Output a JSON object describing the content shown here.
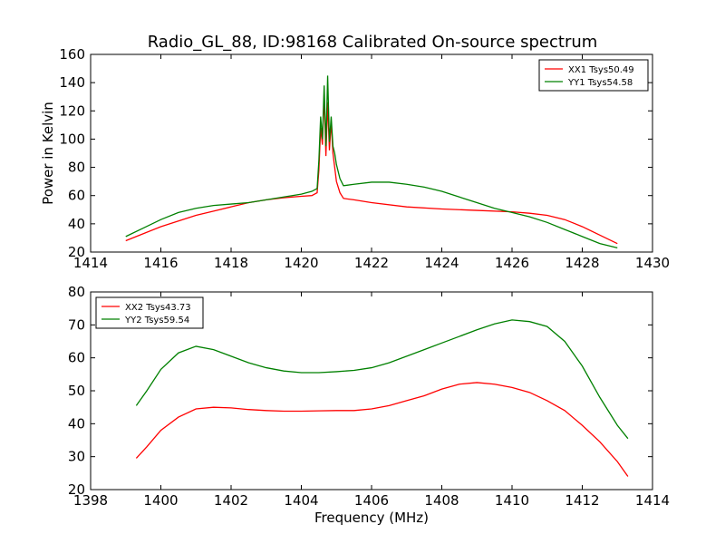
{
  "figure": {
    "title": "Radio_GL_88, ID:98168 Calibrated On-source spectrum"
  },
  "chart_data": [
    {
      "type": "line",
      "xlabel": "",
      "ylabel": "Power in Kelvin",
      "xlim": [
        1414,
        1430
      ],
      "ylim": [
        20,
        160
      ],
      "xticks": [
        1414,
        1416,
        1418,
        1420,
        1422,
        1424,
        1426,
        1428,
        1430
      ],
      "yticks": [
        20,
        40,
        60,
        80,
        100,
        120,
        140,
        160
      ],
      "grid": false,
      "legend_position": "top-right",
      "series": [
        {
          "name": "XX1 Tsys50.49",
          "color": "#ff0000",
          "x": [
            1415.0,
            1415.5,
            1416.0,
            1416.5,
            1417.0,
            1417.5,
            1418.0,
            1418.5,
            1419.0,
            1419.5,
            1420.0,
            1420.3,
            1420.45,
            1420.5,
            1420.55,
            1420.6,
            1420.65,
            1420.7,
            1420.75,
            1420.8,
            1420.85,
            1420.9,
            1420.95,
            1421.0,
            1421.1,
            1421.2,
            1421.5,
            1422.0,
            1423.0,
            1424.0,
            1425.0,
            1426.0,
            1426.5,
            1427.0,
            1427.5,
            1428.0,
            1428.5,
            1429.0
          ],
          "values": [
            28,
            33,
            38,
            42,
            46,
            49,
            52,
            55,
            57,
            58.5,
            59.5,
            60,
            62,
            78,
            108,
            96,
            132,
            88,
            126,
            92,
            112,
            90,
            80,
            70,
            62,
            58,
            57,
            55,
            52,
            50.5,
            49.5,
            48.5,
            47.5,
            46,
            43,
            38,
            32,
            26
          ]
        },
        {
          "name": "YY1 Tsys54.58",
          "color": "#008000",
          "x": [
            1415.0,
            1415.5,
            1416.0,
            1416.5,
            1417.0,
            1417.5,
            1418.0,
            1418.5,
            1419.0,
            1419.5,
            1420.0,
            1420.3,
            1420.45,
            1420.5,
            1420.55,
            1420.6,
            1420.65,
            1420.7,
            1420.75,
            1420.8,
            1420.85,
            1420.9,
            1420.95,
            1421.0,
            1421.1,
            1421.2,
            1421.5,
            1422.0,
            1422.5,
            1423.0,
            1423.5,
            1424.0,
            1424.5,
            1425.0,
            1425.5,
            1426.0,
            1426.5,
            1427.0,
            1427.5,
            1428.0,
            1428.5,
            1429.0
          ],
          "values": [
            31,
            37,
            43,
            48,
            51,
            53,
            54,
            55,
            57,
            59,
            61,
            63,
            65,
            85,
            116,
            100,
            138,
            95,
            145,
            98,
            116,
            95,
            90,
            82,
            72,
            67,
            68,
            69.5,
            69.5,
            68,
            66,
            63,
            59,
            55,
            51,
            48,
            45,
            41,
            36,
            31,
            26,
            23
          ]
        }
      ]
    },
    {
      "type": "line",
      "xlabel": "Frequency (MHz)",
      "ylabel": "",
      "xlim": [
        1398,
        1414
      ],
      "ylim": [
        20,
        80
      ],
      "xticks": [
        1398,
        1400,
        1402,
        1404,
        1406,
        1408,
        1410,
        1412,
        1414
      ],
      "yticks": [
        20,
        30,
        40,
        50,
        60,
        70,
        80
      ],
      "grid": false,
      "legend_position": "top-left",
      "series": [
        {
          "name": "XX2 Tsys43.73",
          "color": "#ff0000",
          "x": [
            1399.3,
            1399.6,
            1400.0,
            1400.5,
            1401.0,
            1401.5,
            1402.0,
            1402.5,
            1403.0,
            1403.5,
            1404.0,
            1404.5,
            1405.0,
            1405.5,
            1406.0,
            1406.5,
            1407.0,
            1407.5,
            1408.0,
            1408.5,
            1409.0,
            1409.5,
            1410.0,
            1410.5,
            1411.0,
            1411.5,
            1412.0,
            1412.5,
            1413.0,
            1413.3
          ],
          "values": [
            29.5,
            33,
            38,
            42,
            44.5,
            45,
            44.8,
            44.3,
            44,
            43.8,
            43.8,
            43.9,
            44,
            44,
            44.5,
            45.5,
            47,
            48.5,
            50.5,
            52,
            52.5,
            52,
            51,
            49.5,
            47,
            44,
            39.5,
            34.5,
            28.5,
            24
          ]
        },
        {
          "name": "YY2 Tsys59.54",
          "color": "#008000",
          "x": [
            1399.3,
            1399.6,
            1400.0,
            1400.5,
            1401.0,
            1401.5,
            1402.0,
            1402.5,
            1403.0,
            1403.5,
            1404.0,
            1404.5,
            1405.0,
            1405.5,
            1406.0,
            1406.5,
            1407.0,
            1407.5,
            1408.0,
            1408.5,
            1409.0,
            1409.5,
            1410.0,
            1410.5,
            1411.0,
            1411.5,
            1412.0,
            1412.5,
            1413.0,
            1413.3
          ],
          "values": [
            45.5,
            50,
            56.5,
            61.5,
            63.5,
            62.5,
            60.5,
            58.5,
            57,
            56,
            55.5,
            55.5,
            55.8,
            56.2,
            57,
            58.5,
            60.5,
            62.5,
            64.5,
            66.5,
            68.5,
            70.3,
            71.5,
            71,
            69.5,
            65,
            57.5,
            48,
            39.5,
            35.5
          ]
        }
      ]
    }
  ]
}
